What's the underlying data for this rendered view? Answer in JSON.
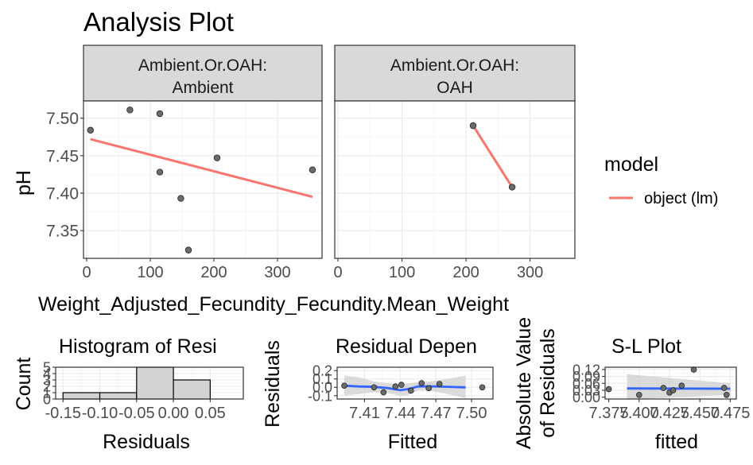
{
  "chart_data": [
    {
      "type": "scatter",
      "title": "Analysis Plot",
      "xlabel": "Weight_Adjusted_Fecundity_Fecundity.Mean_Weight",
      "ylabel": "pH",
      "xlim": [
        -5,
        370
      ],
      "ylim": [
        7.313,
        7.523
      ],
      "xticks": [
        "0",
        "100",
        "200",
        "300"
      ],
      "xtick_values": [
        0,
        100,
        200,
        300
      ],
      "yticks": [
        "7.35",
        "7.40",
        "7.45",
        "7.50"
      ],
      "ytick_values": [
        7.35,
        7.4,
        7.45,
        7.5
      ],
      "legend": {
        "title": "model",
        "entries": [
          {
            "label": "object (lm)",
            "color": "#F8766D"
          }
        ],
        "position": "right"
      },
      "grid": true,
      "panels": [
        {
          "strip": [
            "Ambient.Or.OAH:",
            "Ambient"
          ],
          "points": [
            {
              "x": 6,
              "y": 7.484
            },
            {
              "x": 68,
              "y": 7.511
            },
            {
              "x": 115,
              "y": 7.506
            },
            {
              "x": 115,
              "y": 7.428
            },
            {
              "x": 148,
              "y": 7.393
            },
            {
              "x": 160,
              "y": 7.324
            },
            {
              "x": 205,
              "y": 7.447
            },
            {
              "x": 355,
              "y": 7.431
            }
          ],
          "fit": [
            {
              "x": 6,
              "y": 7.472
            },
            {
              "x": 355,
              "y": 7.395
            }
          ]
        },
        {
          "strip": [
            "Ambient.Or.OAH:",
            "OAH"
          ],
          "points": [
            {
              "x": 211,
              "y": 7.49
            },
            {
              "x": 272,
              "y": 7.408
            }
          ],
          "fit": [
            {
              "x": 211,
              "y": 7.49
            },
            {
              "x": 272,
              "y": 7.408
            }
          ]
        }
      ]
    },
    {
      "type": "bar",
      "title": "Histogram of Resi",
      "xlabel": "Residuals",
      "ylabel": "Count",
      "xlim": [
        -0.16,
        0.095
      ],
      "ylim": [
        0,
        5
      ],
      "xticks": [
        "-0.15",
        "-0.10",
        "-0.05",
        "0.00",
        "0.05"
      ],
      "xtick_values": [
        -0.15,
        -0.1,
        -0.05,
        0.0,
        0.05
      ],
      "yticks": [
        "0",
        "1",
        "2",
        "3",
        "4",
        "5"
      ],
      "ytick_values": [
        0,
        1,
        2,
        3,
        4,
        5
      ],
      "bins": [
        {
          "from": -0.15,
          "to": -0.1,
          "count": 1
        },
        {
          "from": -0.1,
          "to": -0.05,
          "count": 1
        },
        {
          "from": -0.05,
          "to": 0.0,
          "count": 5
        },
        {
          "from": 0.0,
          "to": 0.05,
          "count": 3
        }
      ],
      "grid": true
    },
    {
      "type": "scatter",
      "title": "Residual Depen",
      "xlabel": "Fitted",
      "ylabel": "Residuals",
      "xlim": [
        7.387,
        7.518
      ],
      "ylim": [
        -0.14,
        0.24
      ],
      "xticks": [
        "7.41",
        "7.44",
        "7.47",
        "7.50"
      ],
      "xtick_values": [
        7.41,
        7.44,
        7.47,
        7.5
      ],
      "yticks": [
        "-0.1",
        "0.0",
        "0.1",
        "0.2"
      ],
      "ytick_values": [
        -0.1,
        0.0,
        0.1,
        0.2
      ],
      "points": [
        {
          "x": 7.393,
          "y": 0.02
        },
        {
          "x": 7.418,
          "y": 0.0
        },
        {
          "x": 7.426,
          "y": -0.06
        },
        {
          "x": 7.436,
          "y": 0.01
        },
        {
          "x": 7.441,
          "y": 0.03
        },
        {
          "x": 7.449,
          "y": -0.04
        },
        {
          "x": 7.458,
          "y": 0.05
        },
        {
          "x": 7.464,
          "y": -0.01
        },
        {
          "x": 7.473,
          "y": 0.04
        },
        {
          "x": 7.509,
          "y": 0.0
        }
      ],
      "smooth": [
        {
          "x": 7.393,
          "y": 0.02
        },
        {
          "x": 7.405,
          "y": 0.01
        },
        {
          "x": 7.418,
          "y": 0.005
        },
        {
          "x": 7.43,
          "y": -0.01
        },
        {
          "x": 7.44,
          "y": -0.035
        },
        {
          "x": 7.447,
          "y": -0.02
        },
        {
          "x": 7.455,
          "y": 0.01
        },
        {
          "x": 7.465,
          "y": 0.012
        },
        {
          "x": 7.48,
          "y": 0.006
        },
        {
          "x": 7.495,
          "y": 0.0
        }
      ],
      "band": {
        "upper": [
          0.14,
          0.12,
          0.07,
          0.05,
          0.03,
          0.05,
          0.06,
          0.07,
          0.1,
          0.14
        ],
        "lower": [
          -0.1,
          -0.08,
          -0.06,
          -0.07,
          -0.1,
          -0.09,
          -0.04,
          -0.04,
          -0.08,
          -0.13
        ]
      },
      "grid": true
    },
    {
      "type": "scatter",
      "title": "S-L Plot",
      "xlabel": "fitted",
      "ylabel": "Absolute Value\nof Residuals",
      "ylabel_lines": [
        "Absolute Value",
        "of Residuals"
      ],
      "xlim": [
        7.372,
        7.48
      ],
      "ylim": [
        -0.008,
        0.13
      ],
      "xticks": [
        "7.375",
        "7.400",
        "7.425",
        "7.450",
        "7.475"
      ],
      "xtick_values": [
        7.375,
        7.4,
        7.425,
        7.45,
        7.475
      ],
      "yticks": [
        "0.00",
        "0.03",
        "0.06",
        "0.09",
        "0.12"
      ],
      "ytick_values": [
        0.0,
        0.03,
        0.06,
        0.09,
        0.12
      ],
      "points": [
        {
          "x": 7.375,
          "y": 0.035
        },
        {
          "x": 7.4,
          "y": 0.01
        },
        {
          "x": 7.42,
          "y": 0.04
        },
        {
          "x": 7.425,
          "y": 0.02
        },
        {
          "x": 7.428,
          "y": 0.03
        },
        {
          "x": 7.435,
          "y": 0.05
        },
        {
          "x": 7.445,
          "y": 0.12
        },
        {
          "x": 7.47,
          "y": 0.04
        },
        {
          "x": 7.472,
          "y": 0.01
        }
      ],
      "smooth": [
        {
          "x": 7.39,
          "y": 0.038
        },
        {
          "x": 7.475,
          "y": 0.037
        }
      ],
      "band": {
        "upper": [
          0.1,
          0.06
        ],
        "lower": [
          -0.01,
          0.01
        ]
      },
      "grid": true
    }
  ],
  "colors": {
    "fit_line": "#F8766D",
    "smooth_line": "#3366FF",
    "band": "#CFCFCF",
    "point_fill": "#6B6B6B",
    "strip_bg": "#D9D9D9",
    "grid_major": "#EBEBEB",
    "grid_minor": "#F4F4F4",
    "text_dark": "#000000",
    "tick_text": "#4D4D4D",
    "hist_fill": "#D3D3D3"
  }
}
